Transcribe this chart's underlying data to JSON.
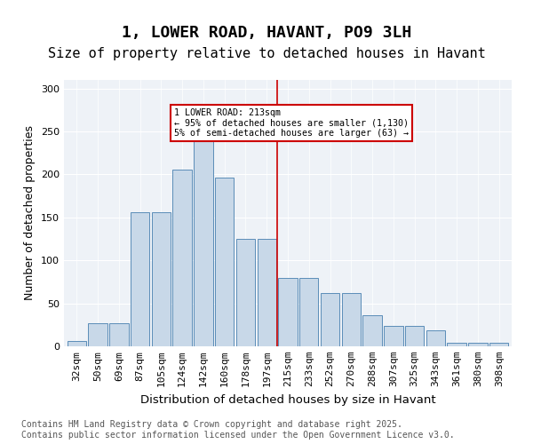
{
  "title": "1, LOWER ROAD, HAVANT, PO9 3LH",
  "subtitle": "Size of property relative to detached houses in Havant",
  "xlabel": "Distribution of detached houses by size in Havant",
  "ylabel": "Number of detached properties",
  "bar_labels": [
    "32sqm",
    "50sqm",
    "69sqm",
    "87sqm",
    "105sqm",
    "124sqm",
    "142sqm",
    "160sqm",
    "178sqm",
    "197sqm",
    "215sqm",
    "233sqm",
    "252sqm",
    "270sqm",
    "288sqm",
    "307sqm",
    "325sqm",
    "343sqm",
    "361sqm",
    "380sqm",
    "398sqm"
  ],
  "bar_heights": [
    6,
    27,
    27,
    156,
    156,
    206,
    250,
    196,
    125,
    125,
    80,
    80,
    62,
    62,
    36,
    24,
    24,
    19,
    4,
    4,
    4
  ],
  "bar_color": "#c8d8e8",
  "bar_edge_color": "#5b8db8",
  "vline_x": 10,
  "vline_color": "#cc0000",
  "annotation_title": "1 LOWER ROAD: 213sqm",
  "annotation_line1": "← 95% of detached houses are smaller (1,130)",
  "annotation_line2": "5% of semi-detached houses are larger (63) →",
  "annotation_box_color": "#cc0000",
  "ylim": [
    0,
    310
  ],
  "yticks": [
    0,
    50,
    100,
    150,
    200,
    250,
    300
  ],
  "background_color": "#eef2f7",
  "footer_line1": "Contains HM Land Registry data © Crown copyright and database right 2025.",
  "footer_line2": "Contains public sector information licensed under the Open Government Licence v3.0.",
  "title_fontsize": 13,
  "subtitle_fontsize": 11,
  "axis_label_fontsize": 9,
  "tick_fontsize": 8,
  "footer_fontsize": 7
}
